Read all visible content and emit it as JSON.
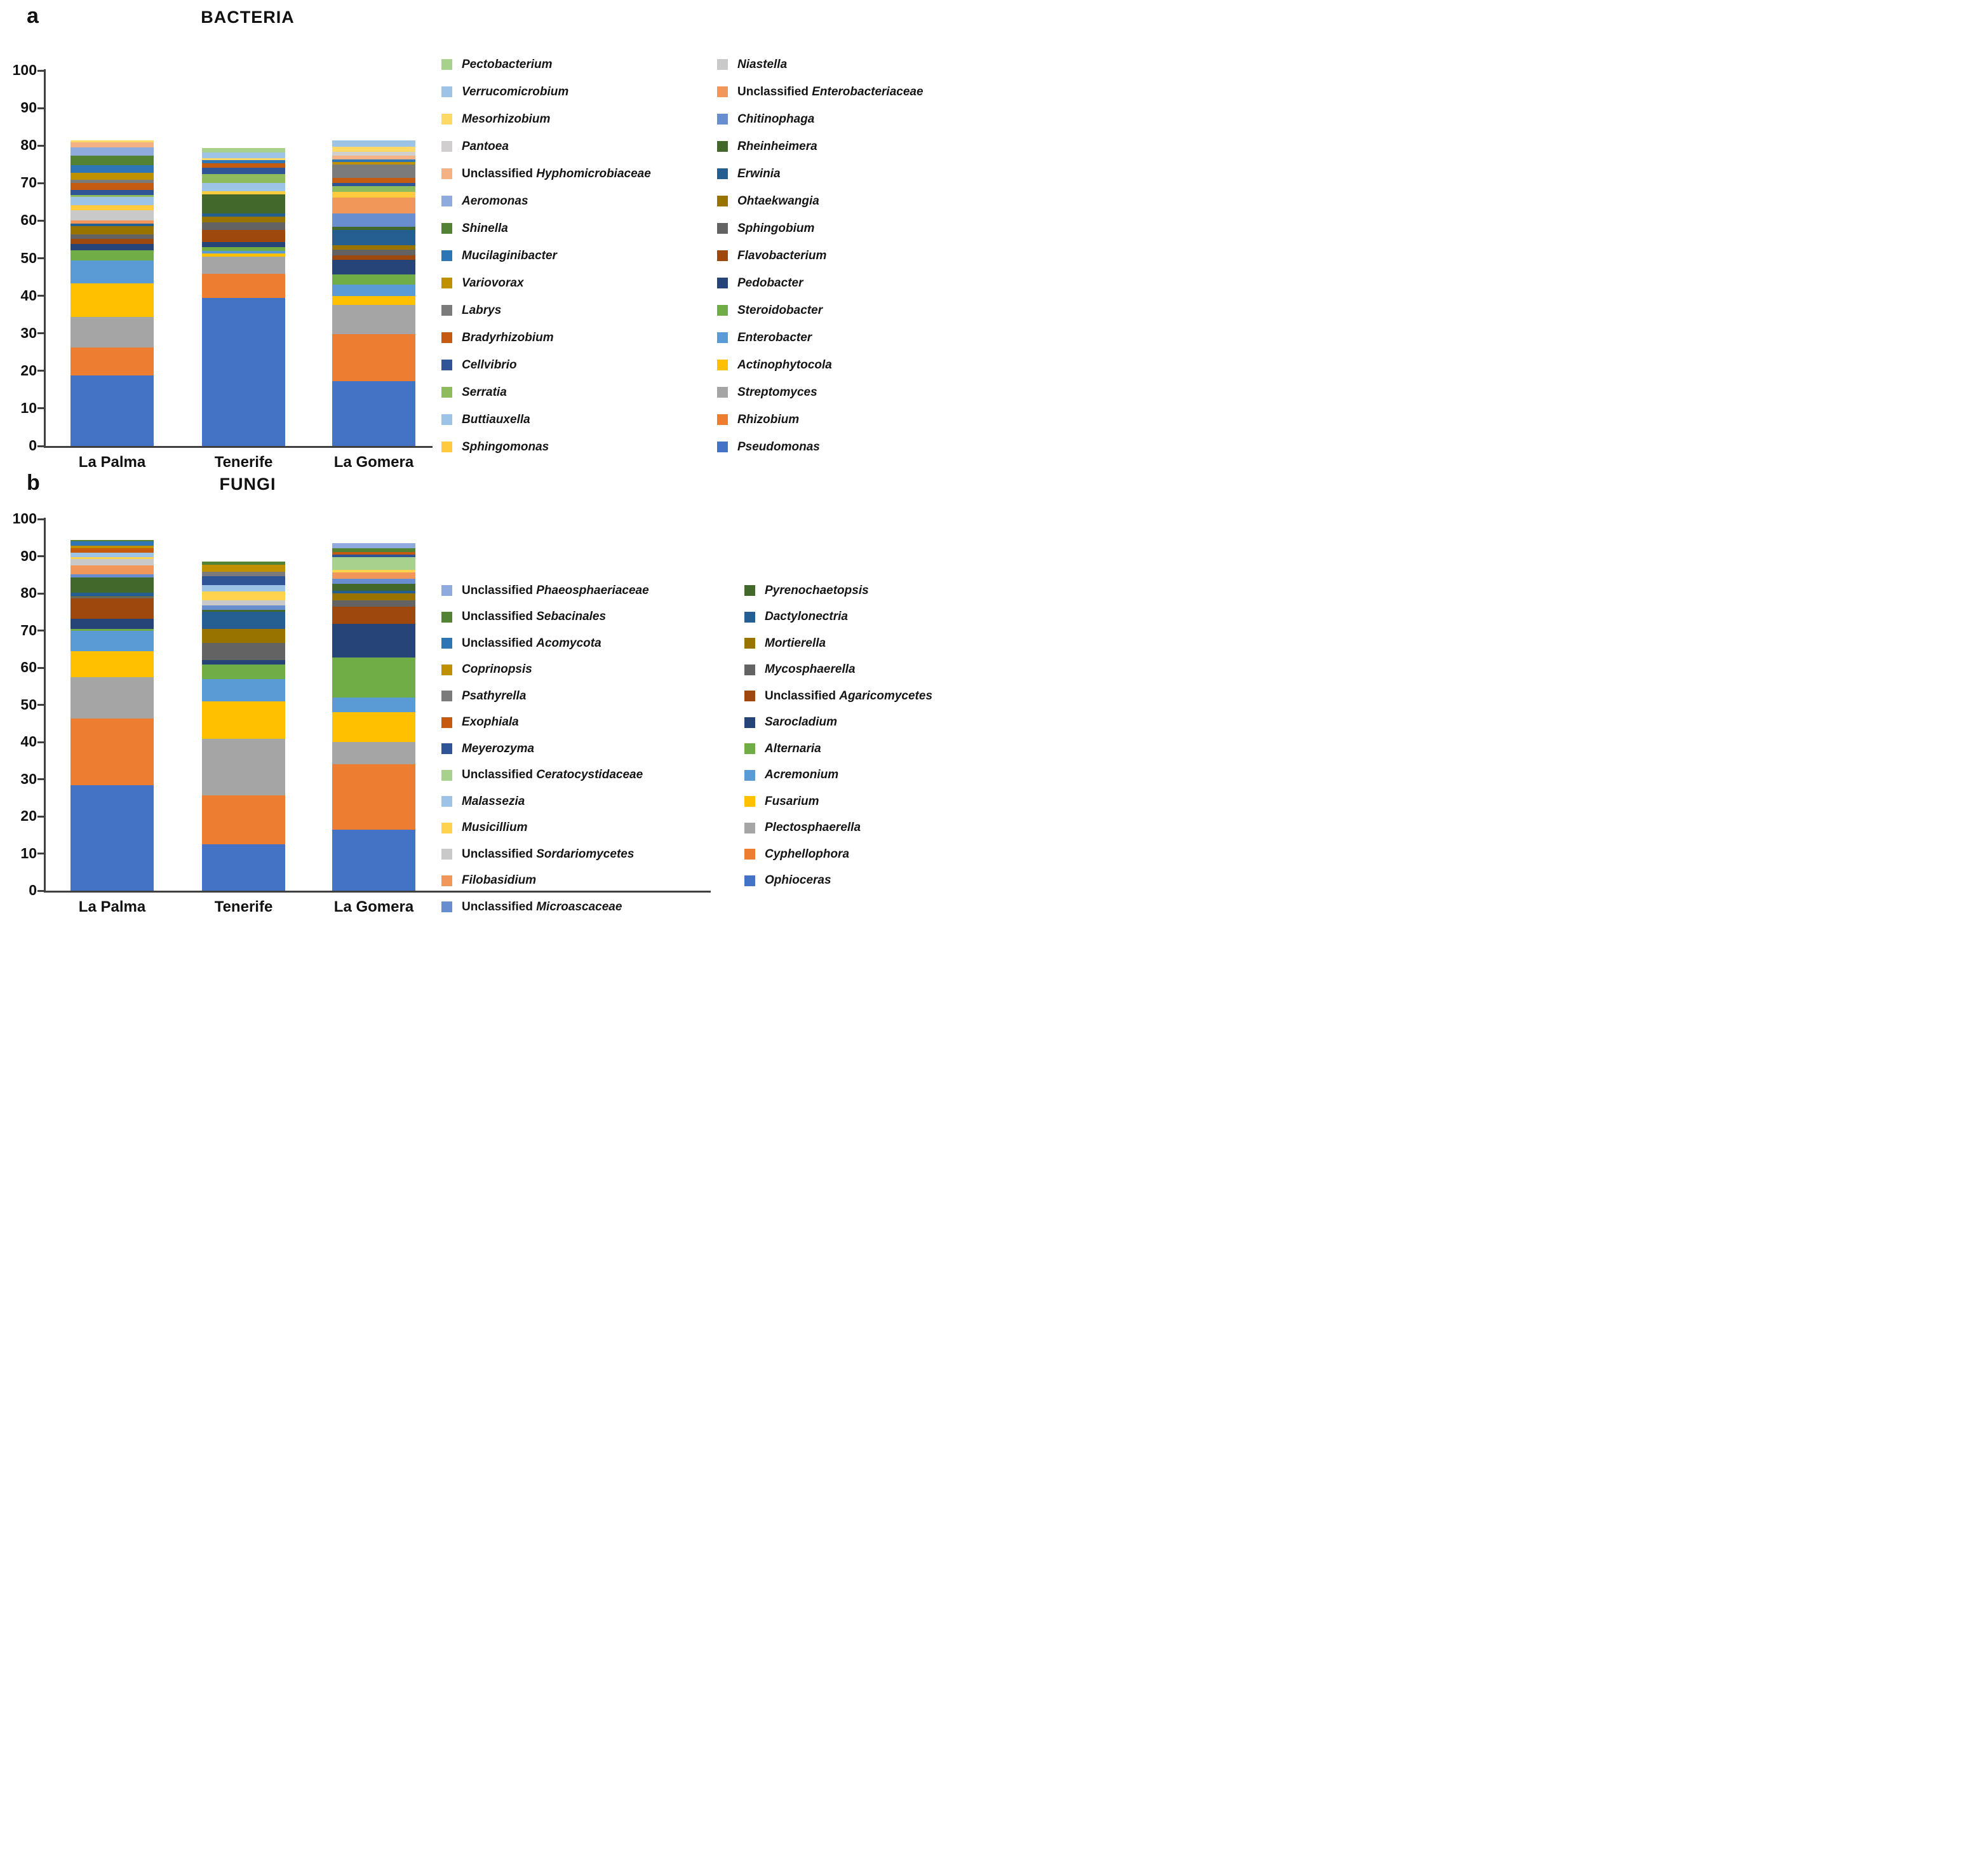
{
  "chart_data": [
    {
      "type": "bar",
      "stacked": true,
      "panel_letter": "a",
      "title": "BACTERIA",
      "categories": [
        "La Palma",
        "Tenerife",
        "La Gomera"
      ],
      "ylim": [
        0,
        100
      ],
      "ytick_step": 10,
      "grid": false,
      "legend_position": "right",
      "legend_column_counts": [
        15,
        15
      ],
      "series": [
        {
          "name": "Pseudomonas",
          "prefix": "",
          "color": "#4472C4",
          "values": [
            18.8,
            39.5,
            17.3
          ]
        },
        {
          "name": "Rhizobium",
          "prefix": "",
          "color": "#ED7D31",
          "values": [
            7.4,
            6.4,
            12.4
          ]
        },
        {
          "name": "Streptomyces",
          "prefix": "",
          "color": "#A5A5A5",
          "values": [
            8.1,
            4.6,
            7.9
          ]
        },
        {
          "name": "Actinophytocola",
          "prefix": "",
          "color": "#FFC000",
          "values": [
            9.0,
            0.8,
            2.4
          ]
        },
        {
          "name": "Enterobacter",
          "prefix": "",
          "color": "#5B9BD5",
          "values": [
            6.1,
            0.7,
            3.0
          ]
        },
        {
          "name": "Steroidobacter",
          "prefix": "",
          "color": "#70AD47",
          "values": [
            2.8,
            0.9,
            2.7
          ]
        },
        {
          "name": "Pedobacter",
          "prefix": "",
          "color": "#264478",
          "values": [
            1.6,
            1.4,
            3.9
          ]
        },
        {
          "name": "Flavobacterium",
          "prefix": "",
          "color": "#9E480E",
          "values": [
            1.4,
            3.2,
            1.2
          ]
        },
        {
          "name": "Sphingobium",
          "prefix": "",
          "color": "#636363",
          "values": [
            1.2,
            2.1,
            1.5
          ]
        },
        {
          "name": "Ohtaekwangia",
          "prefix": "",
          "color": "#997300",
          "values": [
            2.2,
            1.5,
            1.2
          ]
        },
        {
          "name": "Erwinia",
          "prefix": "",
          "color": "#255E91",
          "values": [
            0.7,
            0.9,
            4.0
          ]
        },
        {
          "name": "Rheinheimera",
          "prefix": "",
          "color": "#43682B",
          "values": [
            0,
            5.0,
            0.9
          ]
        },
        {
          "name": "Chitinophaga",
          "prefix": "",
          "color": "#698ED0",
          "values": [
            0,
            0,
            3.6
          ]
        },
        {
          "name": "Enterobacteriaceae",
          "prefix": "Unclassified",
          "color": "#F1975A",
          "values": [
            0.7,
            0,
            4.2
          ]
        },
        {
          "name": "Niastella",
          "prefix": "",
          "color": "#C9C9C9",
          "values": [
            2.8,
            0,
            0
          ]
        },
        {
          "name": "Sphingomonas",
          "prefix": "",
          "color": "#FFCB3E",
          "values": [
            1.4,
            0.9,
            1.5
          ]
        },
        {
          "name": "Buttiauxella",
          "prefix": "",
          "color": "#9DC3E6",
          "values": [
            2.2,
            2.1,
            0
          ]
        },
        {
          "name": "Serratia",
          "prefix": "",
          "color": "#8EBB5C",
          "values": [
            0.5,
            2.4,
            1.5
          ]
        },
        {
          "name": "Cellvibrio",
          "prefix": "",
          "color": "#2F5597",
          "values": [
            1.3,
            1.8,
            0.9
          ]
        },
        {
          "name": "Bradyrhizobium",
          "prefix": "",
          "color": "#C55A11",
          "values": [
            1.8,
            1.2,
            1.3
          ]
        },
        {
          "name": "Labrys",
          "prefix": "",
          "color": "#7B7B7B",
          "values": [
            1.0,
            0,
            3.5
          ]
        },
        {
          "name": "Variovorax",
          "prefix": "",
          "color": "#BF9000",
          "values": [
            1.8,
            0,
            0.7
          ]
        },
        {
          "name": "Mucilaginibacter",
          "prefix": "",
          "color": "#2E75B6",
          "values": [
            2.0,
            0.8,
            0.8
          ]
        },
        {
          "name": "Shinella",
          "prefix": "",
          "color": "#548235",
          "values": [
            2.5,
            0,
            0
          ]
        },
        {
          "name": "Aeromonas",
          "prefix": "",
          "color": "#8FAADC",
          "values": [
            2.2,
            0,
            0
          ]
        },
        {
          "name": "Hyphomicrobiaceae",
          "prefix": "Unclassified",
          "color": "#F4B183",
          "values": [
            1.4,
            0,
            1.0
          ]
        },
        {
          "name": "Pantoea",
          "prefix": "",
          "color": "#D0CECE",
          "values": [
            0,
            0,
            1.0
          ]
        },
        {
          "name": "Mesorhizobium",
          "prefix": "",
          "color": "#FFD966",
          "values": [
            0.5,
            0.5,
            1.3
          ]
        },
        {
          "name": "Verrucomicrobium",
          "prefix": "",
          "color": "#9DC3E6",
          "values": [
            0,
            1.5,
            1.7
          ]
        },
        {
          "name": "Pectobacterium",
          "prefix": "",
          "color": "#A9D18E",
          "values": [
            0,
            1.2,
            0
          ]
        }
      ]
    },
    {
      "type": "bar",
      "stacked": true,
      "panel_letter": "b",
      "title": "FUNGI",
      "categories": [
        "La Palma",
        "Tenerife",
        "La Gomera"
      ],
      "ylim": [
        0,
        100
      ],
      "ytick_step": 10,
      "grid": false,
      "legend_position": "right",
      "legend_column_counts": [
        13,
        12
      ],
      "series": [
        {
          "name": "Ophioceras",
          "prefix": "",
          "color": "#4472C4",
          "values": [
            28.3,
            12.5,
            16.4
          ]
        },
        {
          "name": "Cyphellophora",
          "prefix": "",
          "color": "#ED7D31",
          "values": [
            18.0,
            13.2,
            17.7
          ]
        },
        {
          "name": "Plectosphaerella",
          "prefix": "",
          "color": "#A5A5A5",
          "values": [
            11.2,
            15.2,
            5.9
          ]
        },
        {
          "name": "Fusarium",
          "prefix": "",
          "color": "#FFC000",
          "values": [
            7.0,
            10.1,
            8.1
          ]
        },
        {
          "name": "Acremonium",
          "prefix": "",
          "color": "#5B9BD5",
          "values": [
            5.5,
            5.9,
            3.8
          ]
        },
        {
          "name": "Alternaria",
          "prefix": "",
          "color": "#70AD47",
          "values": [
            0.5,
            4.0,
            10.8
          ]
        },
        {
          "name": "Sarocladium",
          "prefix": "",
          "color": "#264478",
          "values": [
            2.7,
            1.2,
            9.1
          ]
        },
        {
          "name": "Agaricomycetes",
          "prefix": "Unclassified",
          "color": "#9E480E",
          "values": [
            5.4,
            0,
            4.6
          ]
        },
        {
          "name": "Mycosphaerella",
          "prefix": "",
          "color": "#636363",
          "values": [
            0.3,
            4.5,
            1.7
          ]
        },
        {
          "name": "Mortierella",
          "prefix": "",
          "color": "#997300",
          "values": [
            0.3,
            3.8,
            1.9
          ]
        },
        {
          "name": "Dactylonectria",
          "prefix": "",
          "color": "#255E91",
          "values": [
            0.9,
            4.6,
            0.7
          ]
        },
        {
          "name": "Pyrenochaetopsis",
          "prefix": "",
          "color": "#43682B",
          "values": [
            4.2,
            0.5,
            1.8
          ]
        },
        {
          "name": "Microascaceae",
          "prefix": "Unclassified",
          "color": "#698ED0",
          "values": [
            0.9,
            1.2,
            1.4
          ]
        },
        {
          "name": "Filobasidium",
          "prefix": "",
          "color": "#F1975A",
          "values": [
            2.4,
            0,
            1.7
          ]
        },
        {
          "name": "Sordariomycetes",
          "prefix": "Unclassified",
          "color": "#C9C9C9",
          "values": [
            1.7,
            1.4,
            0
          ]
        },
        {
          "name": "Musicillium",
          "prefix": "",
          "color": "#FFD34D",
          "values": [
            0.4,
            2.4,
            0.7
          ]
        },
        {
          "name": "Malassezia",
          "prefix": "",
          "color": "#9DC3E6",
          "values": [
            1.3,
            1.8,
            0
          ]
        },
        {
          "name": "Ceratocystidaceae",
          "prefix": "Unclassified",
          "color": "#A9D18E",
          "values": [
            0,
            0,
            3.4
          ]
        },
        {
          "name": "Meyerozyma",
          "prefix": "",
          "color": "#2F5597",
          "values": [
            0,
            2.4,
            0.7
          ]
        },
        {
          "name": "Exophiala",
          "prefix": "",
          "color": "#C55A11",
          "values": [
            1.2,
            0,
            0.8
          ]
        },
        {
          "name": "Psathyrella",
          "prefix": "",
          "color": "#7B7B7B",
          "values": [
            0,
            1.1,
            0
          ]
        },
        {
          "name": "Coprinopsis",
          "prefix": "",
          "color": "#BF9000",
          "values": [
            0.6,
            2.0,
            0
          ]
        },
        {
          "name": "Acomycota",
          "prefix": "Unclassified",
          "color": "#2E75B6",
          "values": [
            1.2,
            0,
            0
          ]
        },
        {
          "name": "Sebacinales",
          "prefix": "Unclassified",
          "color": "#548235",
          "values": [
            0.4,
            0.7,
            1.0
          ]
        },
        {
          "name": "Phaeosphaeriaceae",
          "prefix": "Unclassified",
          "color": "#8FAADC",
          "values": [
            0,
            0,
            1.3
          ]
        }
      ]
    }
  ]
}
